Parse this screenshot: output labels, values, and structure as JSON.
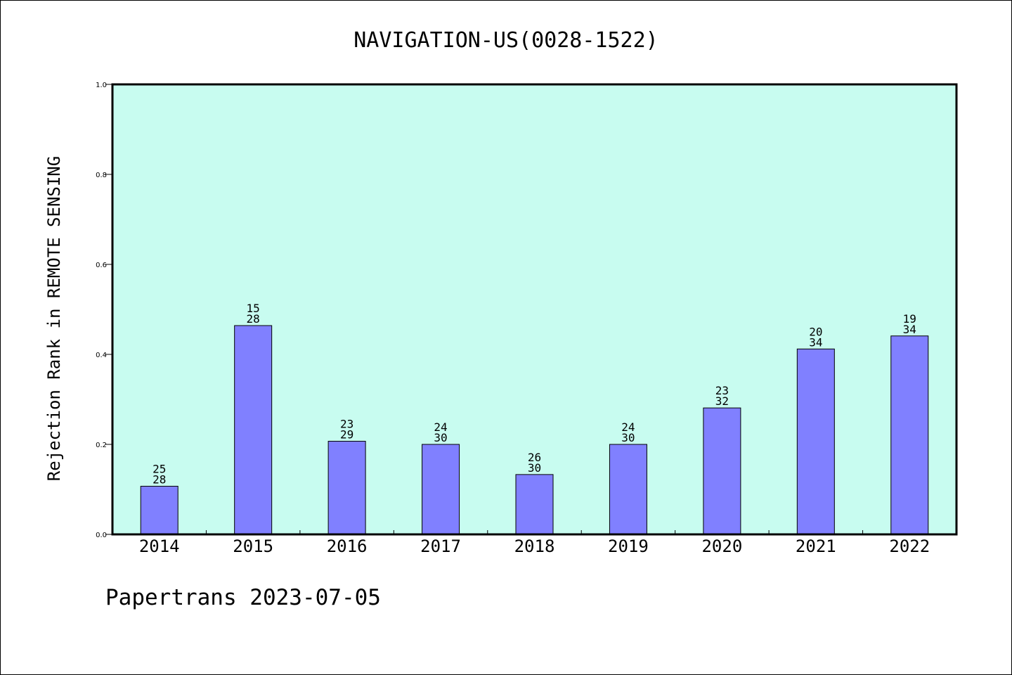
{
  "colors": {
    "plot_background": "#c8fcf0",
    "bar_fill": "#8080ff",
    "bar_stroke": "#000000",
    "axis": "#000000"
  },
  "footer": {
    "text": "Papertrans 2023-07-05"
  },
  "chart_data": {
    "type": "bar",
    "title": "NAVIGATION-US(0028-1522)",
    "xlabel": "",
    "ylabel": "Rejection Rank in REMOTE SENSING",
    "ylim": [
      0,
      1.0
    ],
    "yticks": [
      "0.0",
      "0.2",
      "0.4",
      "0.6",
      "0.8",
      "1.0"
    ],
    "categories": [
      "2014",
      "2015",
      "2016",
      "2017",
      "2018",
      "2019",
      "2020",
      "2021",
      "2022"
    ],
    "values": [
      0.107,
      0.464,
      0.207,
      0.2,
      0.133,
      0.2,
      0.281,
      0.412,
      0.441
    ],
    "labels_top": [
      "25",
      "15",
      "23",
      "24",
      "26",
      "24",
      "23",
      "20",
      "19"
    ],
    "labels_bottom": [
      "28",
      "28",
      "29",
      "30",
      "30",
      "30",
      "32",
      "34",
      "34"
    ],
    "grid": false,
    "legend": "none"
  }
}
